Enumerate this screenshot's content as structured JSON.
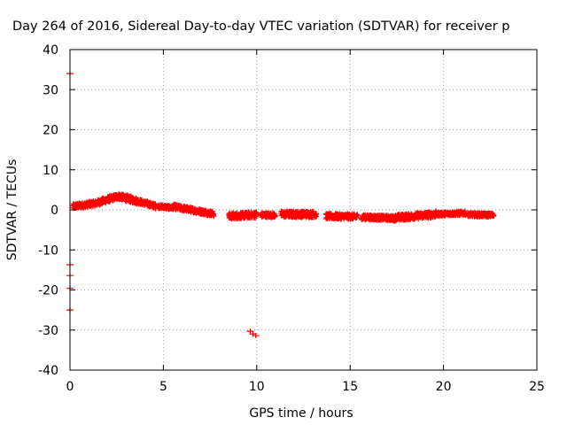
{
  "chart_data": {
    "type": "scatter",
    "title": "Day 264 of 2016, Sidereal Day-to-day VTEC variation (SDTVAR) for receiver p",
    "xlabel": "GPS time / hours",
    "ylabel": "SDTVAR / TECUs",
    "xlim": [
      0,
      25
    ],
    "ylim": [
      -40,
      40
    ],
    "xticks": [
      0,
      5,
      10,
      15,
      20,
      25
    ],
    "yticks": [
      -40,
      -30,
      -20,
      -10,
      0,
      10,
      20,
      30,
      40
    ],
    "grid": true,
    "marker": "plus",
    "series": [
      {
        "color": "#ff0000",
        "segments": [
          {
            "x0": 0.15,
            "x1": 1.35,
            "y0": 0.8,
            "y1": 1.6,
            "spread": 1.4
          },
          {
            "x0": 1.35,
            "x1": 2.6,
            "y0": 1.6,
            "y1": 3.4,
            "spread": 1.5
          },
          {
            "x0": 2.6,
            "x1": 3.6,
            "y0": 3.4,
            "y1": 2.2,
            "spread": 1.6
          },
          {
            "x0": 3.6,
            "x1": 4.6,
            "y0": 2.2,
            "y1": 0.9,
            "spread": 1.3
          },
          {
            "x0": 4.7,
            "x1": 5.5,
            "y0": 0.9,
            "y1": 0.5,
            "spread": 1.0
          },
          {
            "x0": 5.5,
            "x1": 7.7,
            "y0": 0.8,
            "y1": -1.0,
            "spread": 1.3
          },
          {
            "x0": 8.5,
            "x1": 10.0,
            "y0": -1.6,
            "y1": -1.2,
            "spread": 1.6
          },
          {
            "x0": 10.2,
            "x1": 11.0,
            "y0": -1.3,
            "y1": -1.3,
            "spread": 1.2
          },
          {
            "x0": 11.3,
            "x1": 13.2,
            "y0": -1.1,
            "y1": -1.1,
            "spread": 1.6
          },
          {
            "x0": 13.7,
            "x1": 15.4,
            "y0": -1.6,
            "y1": -1.7,
            "spread": 1.4
          },
          {
            "x0": 15.6,
            "x1": 17.4,
            "y0": -1.8,
            "y1": -2.1,
            "spread": 1.3
          },
          {
            "x0": 17.4,
            "x1": 19.6,
            "y0": -2.0,
            "y1": -1.1,
            "spread": 1.6
          },
          {
            "x0": 19.6,
            "x1": 21.2,
            "y0": -1.1,
            "y1": -0.8,
            "spread": 1.0
          },
          {
            "x0": 21.3,
            "x1": 22.7,
            "y0": -1.2,
            "y1": -1.3,
            "spread": 1.0
          }
        ],
        "points": [
          {
            "x": 0.0,
            "y": 34.0
          },
          {
            "x": 0.0,
            "y": -13.7
          },
          {
            "x": 0.0,
            "y": -16.4
          },
          {
            "x": 0.0,
            "y": -19.6
          },
          {
            "x": 0.0,
            "y": -25.0
          },
          {
            "x": 9.65,
            "y": -30.3
          },
          {
            "x": 9.8,
            "y": -31.0
          },
          {
            "x": 9.95,
            "y": -31.4
          }
        ]
      }
    ]
  }
}
